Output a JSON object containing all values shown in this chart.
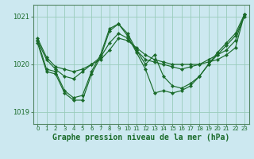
{
  "background_color": "#cce8f0",
  "grid_color": "#99ccbb",
  "line_color": "#1a6b2a",
  "marker_color": "#1a6b2a",
  "xlabel": "Graphe pression niveau de la mer (hPa)",
  "xlabel_fontsize": 7,
  "ylim": [
    1018.75,
    1021.25
  ],
  "xlim": [
    -0.5,
    23.5
  ],
  "yticks": [
    1019,
    1020,
    1021
  ],
  "xticks": [
    0,
    1,
    2,
    3,
    4,
    5,
    6,
    7,
    8,
    9,
    10,
    11,
    12,
    13,
    14,
    15,
    16,
    17,
    18,
    19,
    20,
    21,
    22,
    23
  ],
  "series": [
    [
      1020.55,
      1020.15,
      1019.95,
      1019.9,
      1019.85,
      1019.9,
      1020.0,
      1020.1,
      1020.3,
      1020.55,
      1020.5,
      1020.35,
      1020.2,
      1020.1,
      1020.05,
      1020.0,
      1020.0,
      1020.0,
      1020.0,
      1020.05,
      1020.1,
      1020.2,
      1020.35,
      1021.05
    ],
    [
      1020.5,
      1020.1,
      1019.9,
      1019.75,
      1019.7,
      1019.85,
      1020.0,
      1020.15,
      1020.45,
      1020.65,
      1020.55,
      1020.3,
      1020.1,
      1020.05,
      1020.0,
      1019.95,
      1019.9,
      1019.95,
      1020.0,
      1020.1,
      1020.2,
      1020.3,
      1020.5,
      1021.05
    ],
    [
      1020.5,
      1019.9,
      1019.85,
      1019.45,
      1019.3,
      1019.35,
      1019.85,
      1020.2,
      1020.75,
      1020.85,
      1020.65,
      1020.3,
      1020.0,
      1020.2,
      1019.75,
      1019.55,
      1019.5,
      1019.6,
      1019.75,
      1020.0,
      1020.25,
      1020.45,
      1020.65,
      1021.05
    ],
    [
      1020.45,
      1019.85,
      1019.8,
      1019.4,
      1019.25,
      1019.25,
      1019.8,
      1020.15,
      1020.7,
      1020.85,
      1020.6,
      1020.25,
      1019.9,
      1019.4,
      1019.45,
      1019.4,
      1019.45,
      1019.55,
      1019.75,
      1020.0,
      1020.2,
      1020.4,
      1020.6,
      1021.0
    ]
  ]
}
